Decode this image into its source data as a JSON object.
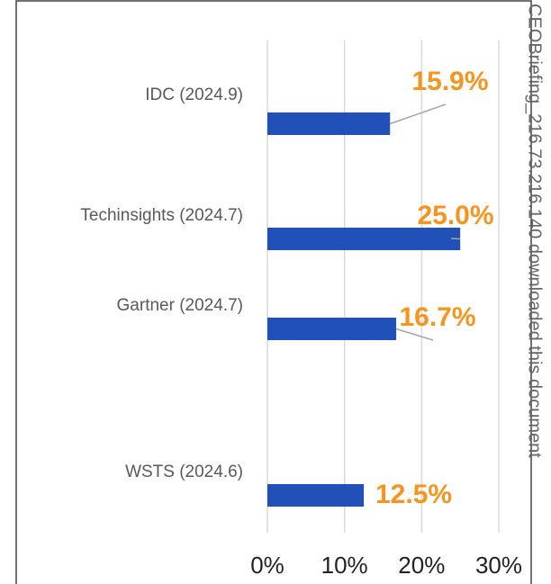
{
  "chart_data": {
    "type": "hbar",
    "categories": [
      "IDC (2024.9)",
      "Techinsights (2024.7)",
      "Gartner (2024.7)",
      "WSTS (2024.6)"
    ],
    "values": [
      15.9,
      25.0,
      16.7,
      12.5
    ],
    "value_labels": [
      "15.9%",
      "25.0%",
      "16.7%",
      "12.5%"
    ],
    "color": "#2150b9",
    "label_color": "#f7941d",
    "xlim": [
      0,
      30
    ],
    "xticks": [
      {
        "value": 0,
        "label": "0%"
      },
      {
        "value": 10,
        "label": "10%"
      },
      {
        "value": 20,
        "label": "20%"
      },
      {
        "value": 30,
        "label": "30%"
      }
    ],
    "grid": true,
    "watermark": "CEOBriefing_216.73.216.140 downloaded this document"
  }
}
